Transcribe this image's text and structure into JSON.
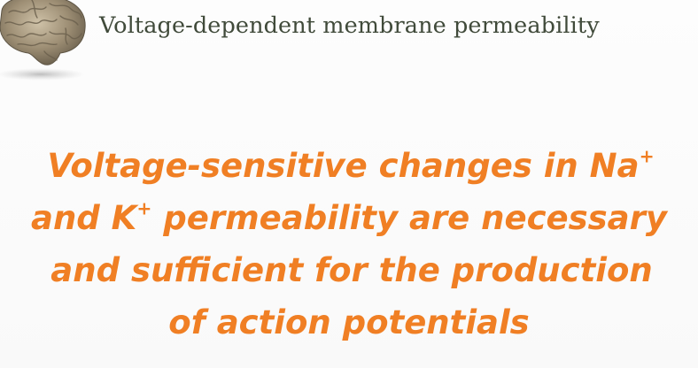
{
  "header": {
    "title": "Voltage-dependent membrane permeability",
    "logo_icon": "brain-icon"
  },
  "statement": {
    "line1_text": "Voltage-sensitive changes in Na",
    "line1_sup": "+",
    "line2_prefix": "and K",
    "line2_sup": "+",
    "line2_text": " permeability are necessary",
    "line3": "and sufficient for the production",
    "line4": "of action potentials"
  },
  "colors": {
    "title": "#404a3a",
    "statement": "#f07f24",
    "background": "#fbfbfb"
  }
}
